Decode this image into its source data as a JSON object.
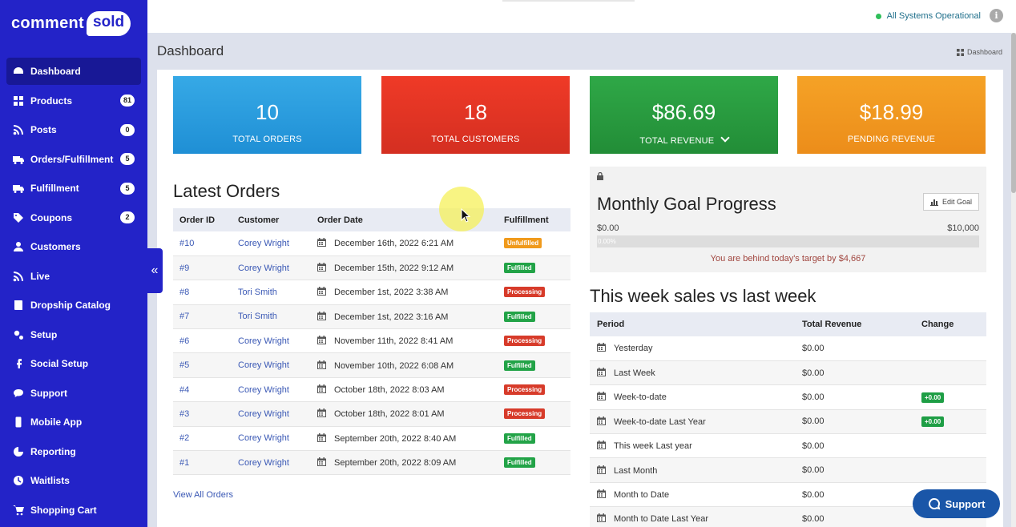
{
  "brand": {
    "part1": "comment",
    "part2": "sold"
  },
  "sidebar": {
    "items": [
      {
        "label": "Dashboard",
        "icon": "gauge-icon",
        "badge": ""
      },
      {
        "label": "Products",
        "icon": "grid-icon",
        "badge": "81"
      },
      {
        "label": "Posts",
        "icon": "rss-icon",
        "badge": "0"
      },
      {
        "label": "Orders/Fulfillment",
        "icon": "truck-icon",
        "badge": "5"
      },
      {
        "label": "Fulfillment",
        "icon": "truck-icon",
        "badge": "5"
      },
      {
        "label": "Coupons",
        "icon": "tag-icon",
        "badge": "2"
      },
      {
        "label": "Customers",
        "icon": "user-icon",
        "badge": ""
      },
      {
        "label": "Live",
        "icon": "rss-icon",
        "badge": ""
      },
      {
        "label": "Dropship Catalog",
        "icon": "book-icon",
        "badge": ""
      },
      {
        "label": "Setup",
        "icon": "cogs-icon",
        "badge": ""
      },
      {
        "label": "Social Setup",
        "icon": "facebook-icon",
        "badge": ""
      },
      {
        "label": "Support",
        "icon": "comments-icon",
        "badge": ""
      },
      {
        "label": "Mobile App",
        "icon": "mobile-icon",
        "badge": ""
      },
      {
        "label": "Reporting",
        "icon": "pie-chart-icon",
        "badge": ""
      },
      {
        "label": "Waitlists",
        "icon": "clock-icon",
        "badge": ""
      },
      {
        "label": "Shopping Cart",
        "icon": "cart-icon",
        "badge": ""
      }
    ],
    "collapse_glyph": "«"
  },
  "topbar": {
    "status": "All Systems Operational",
    "info": "i"
  },
  "page": {
    "title": "Dashboard",
    "breadcrumb": "Dashboard"
  },
  "stats": [
    {
      "value": "10",
      "label": "TOTAL ORDERS",
      "color": "#2a9ee0"
    },
    {
      "value": "18",
      "label": "TOTAL CUSTOMERS",
      "color": "#e2352a"
    },
    {
      "value": "$86.69",
      "label": "TOTAL REVENUE",
      "color": "#2a9b3f"
    },
    {
      "value": "$18.99",
      "label": "PENDING REVENUE",
      "color": "#f09a22"
    }
  ],
  "latest_orders": {
    "title": "Latest Orders",
    "columns": [
      "Order ID",
      "Customer",
      "Order Date",
      "Fulfillment"
    ],
    "rows": [
      {
        "id": "#10",
        "customer": "Corey Wright",
        "date": "December 16th, 2022 6:21 AM",
        "status": "Unfulfilled"
      },
      {
        "id": "#9",
        "customer": "Corey Wright",
        "date": "December 15th, 2022 9:12 AM",
        "status": "Fulfilled"
      },
      {
        "id": "#8",
        "customer": "Tori Smith",
        "date": "December 1st, 2022 3:38 AM",
        "status": "Processing"
      },
      {
        "id": "#7",
        "customer": "Tori Smith",
        "date": "December 1st, 2022 3:16 AM",
        "status": "Fulfilled"
      },
      {
        "id": "#6",
        "customer": "Corey Wright",
        "date": "November 11th, 2022 8:41 AM",
        "status": "Processing"
      },
      {
        "id": "#5",
        "customer": "Corey Wright",
        "date": "November 10th, 2022 6:08 AM",
        "status": "Fulfilled"
      },
      {
        "id": "#4",
        "customer": "Corey Wright",
        "date": "October 18th, 2022 8:03 AM",
        "status": "Processing"
      },
      {
        "id": "#3",
        "customer": "Corey Wright",
        "date": "October 18th, 2022 8:01 AM",
        "status": "Processing"
      },
      {
        "id": "#2",
        "customer": "Corey Wright",
        "date": "September 20th, 2022 8:40 AM",
        "status": "Fulfilled"
      },
      {
        "id": "#1",
        "customer": "Corey Wright",
        "date": "September 20th, 2022 8:09 AM",
        "status": "Fulfilled"
      }
    ],
    "view_all": "View All Orders"
  },
  "goal": {
    "title": "Monthly Goal Progress",
    "edit": "Edit Goal",
    "min": "$0.00",
    "max": "$10,000",
    "progress_text": "0.00%",
    "behind": "You are behind today's target by $4,667"
  },
  "weekly": {
    "title": "This week sales vs last week",
    "columns": [
      "Period",
      "Total Revenue",
      "Change"
    ],
    "rows": [
      {
        "period": "Yesterday",
        "revenue": "$0.00",
        "change": ""
      },
      {
        "period": "Last Week",
        "revenue": "$0.00",
        "change": ""
      },
      {
        "period": "Week-to-date",
        "revenue": "$0.00",
        "change": "+0.00"
      },
      {
        "period": "Week-to-date Last Year",
        "revenue": "$0.00",
        "change": "+0.00"
      },
      {
        "period": "This week Last year",
        "revenue": "$0.00",
        "change": ""
      },
      {
        "period": "Last Month",
        "revenue": "$0.00",
        "change": ""
      },
      {
        "period": "Month to Date",
        "revenue": "$0.00",
        "change": ""
      },
      {
        "period": "Month to Date Last Year",
        "revenue": "$0.00",
        "change": ""
      }
    ]
  },
  "support_button": "Support"
}
